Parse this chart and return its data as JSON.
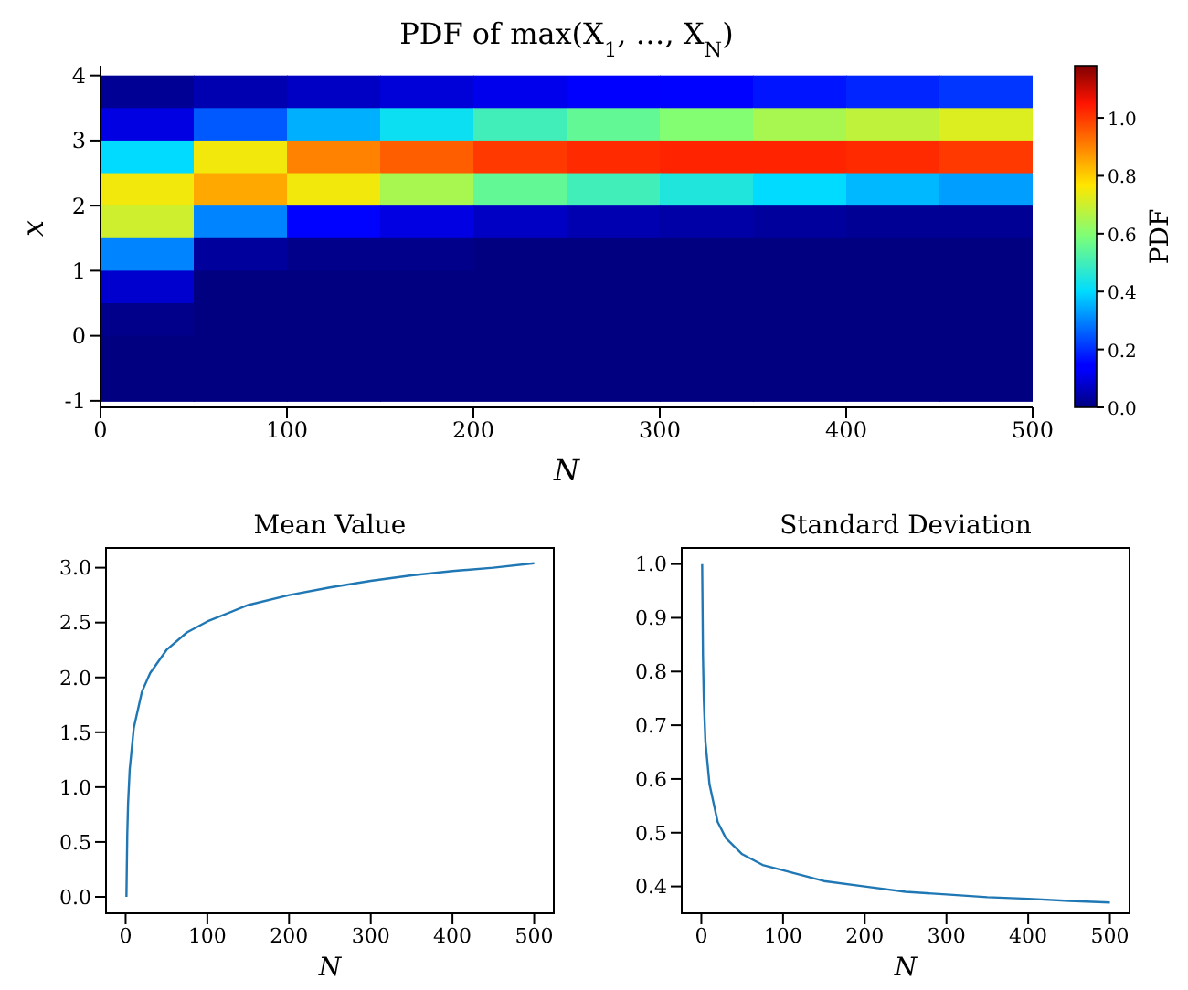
{
  "chart_data": [
    {
      "type": "heatmap",
      "title": "PDF of max(X$_{1}$, …, X$_{N}$)",
      "xlabel": "N",
      "ylabel": "x",
      "clabel": "PDF",
      "x": [
        25,
        75,
        125,
        175,
        225,
        275,
        325,
        375,
        425,
        475
      ],
      "y": [
        3.75,
        3.25,
        2.75,
        2.25,
        1.75,
        1.25,
        0.75,
        0.25,
        -0.25,
        -0.75
      ],
      "cells": [
        [
          0.02,
          0.05,
          0.07,
          0.09,
          0.11,
          0.13,
          0.15,
          0.17,
          0.19,
          0.21
        ],
        [
          0.1,
          0.25,
          0.35,
          0.42,
          0.5,
          0.55,
          0.6,
          0.65,
          0.68,
          0.72
        ],
        [
          0.4,
          0.75,
          0.9,
          0.95,
          1.0,
          1.02,
          1.03,
          1.03,
          1.02,
          1.0
        ],
        [
          0.75,
          0.85,
          0.75,
          0.65,
          0.55,
          0.5,
          0.45,
          0.4,
          0.36,
          0.33
        ],
        [
          0.7,
          0.3,
          0.15,
          0.1,
          0.07,
          0.05,
          0.04,
          0.03,
          0.02,
          0.02
        ],
        [
          0.3,
          0.03,
          0.01,
          0.01,
          0,
          0,
          0,
          0,
          0,
          0
        ],
        [
          0.08,
          0,
          0,
          0,
          0,
          0,
          0,
          0,
          0,
          0
        ],
        [
          0.01,
          0,
          0,
          0,
          0,
          0,
          0,
          0,
          0,
          0
        ],
        [
          0,
          0,
          0,
          0,
          0,
          0,
          0,
          0,
          0,
          0
        ],
        [
          0,
          0,
          0,
          0,
          0,
          0,
          0,
          0,
          0,
          0
        ]
      ],
      "xlim": [
        0,
        500
      ],
      "xticks": [
        0,
        100,
        200,
        300,
        400,
        500
      ],
      "ylim": [
        -1.1,
        4.15
      ],
      "yticks": [
        -1,
        0,
        1,
        2,
        3,
        4
      ],
      "clim": [
        0,
        1.18
      ],
      "cticks": [
        {
          "value": 0,
          "label": "0.0"
        },
        {
          "value": 0.2,
          "label": "0.2"
        },
        {
          "value": 0.4,
          "label": "0.4"
        },
        {
          "value": 0.6,
          "label": "0.6"
        },
        {
          "value": 0.8,
          "label": "0.8"
        },
        {
          "value": 1,
          "label": "1.0"
        }
      ]
    },
    {
      "type": "line",
      "title": "Mean Value",
      "xlabel": "N",
      "x": [
        1,
        2,
        3,
        5,
        10,
        20,
        30,
        50,
        75,
        100,
        150,
        200,
        250,
        300,
        350,
        400,
        450,
        500
      ],
      "series": [
        {
          "color": "#1f77b4",
          "values": [
            0,
            0.56,
            0.85,
            1.16,
            1.54,
            1.87,
            2.04,
            2.25,
            2.41,
            2.51,
            2.66,
            2.75,
            2.82,
            2.88,
            2.93,
            2.97,
            3.0,
            3.04
          ]
        }
      ],
      "xlim": [
        -24,
        524
      ],
      "xticks": [
        0,
        100,
        200,
        300,
        400,
        500
      ],
      "ylim": [
        -0.15,
        3.18
      ],
      "yticks": [
        {
          "value": 0,
          "label": "0.0"
        },
        {
          "value": 0.5,
          "label": "0.5"
        },
        {
          "value": 1,
          "label": "1.0"
        },
        {
          "value": 1.5,
          "label": "1.5"
        },
        {
          "value": 2,
          "label": "2.0"
        },
        {
          "value": 2.5,
          "label": "2.5"
        },
        {
          "value": 3,
          "label": "3.0"
        }
      ]
    },
    {
      "type": "line",
      "title": "Standard Deviation",
      "xlabel": "N",
      "x": [
        1,
        2,
        3,
        5,
        10,
        20,
        30,
        50,
        75,
        100,
        150,
        200,
        250,
        300,
        350,
        400,
        450,
        500
      ],
      "series": [
        {
          "color": "#1f77b4",
          "values": [
            1.0,
            0.83,
            0.75,
            0.67,
            0.59,
            0.52,
            0.49,
            0.46,
            0.44,
            0.43,
            0.41,
            0.4,
            0.39,
            0.385,
            0.38,
            0.377,
            0.373,
            0.37
          ]
        }
      ],
      "xlim": [
        -24,
        524
      ],
      "xticks": [
        0,
        100,
        200,
        300,
        400,
        500
      ],
      "ylim": [
        0.35,
        1.03
      ],
      "yticks": [
        0.4,
        0.5,
        0.6,
        0.7,
        0.8,
        0.9,
        {
          "value": 1,
          "label": "1.0"
        }
      ]
    }
  ]
}
